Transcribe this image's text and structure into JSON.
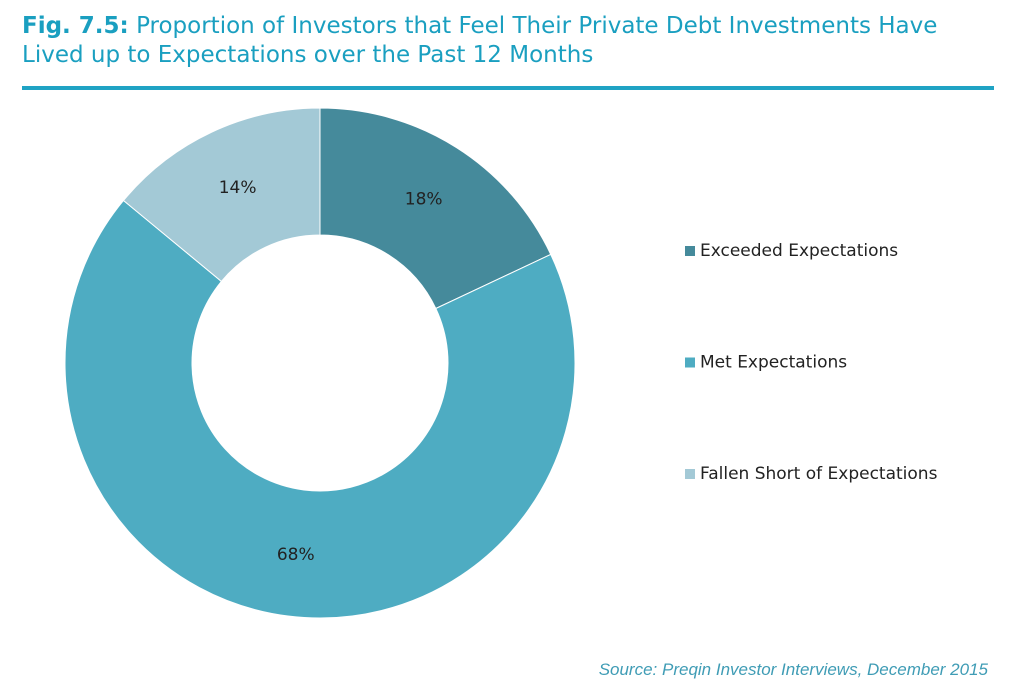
{
  "chart_data": {
    "type": "donut",
    "figure_label": "Fig. 7.5:",
    "title": "Proportion of Investors that Feel Their Private Debt Investments Have Lived up to Expectations over the Past 12 Months",
    "categories": [
      "Exceeded Expectations",
      "Met Expectations",
      "Fallen Short of Expectations"
    ],
    "values": [
      18,
      68,
      14
    ],
    "value_labels": [
      "18%",
      "68%",
      "14%"
    ],
    "colors": [
      "#458a9b",
      "#4eacc2",
      "#a3c9d6"
    ],
    "legend": "right",
    "source": "Source: Preqin Investor Interviews, December 2015"
  }
}
